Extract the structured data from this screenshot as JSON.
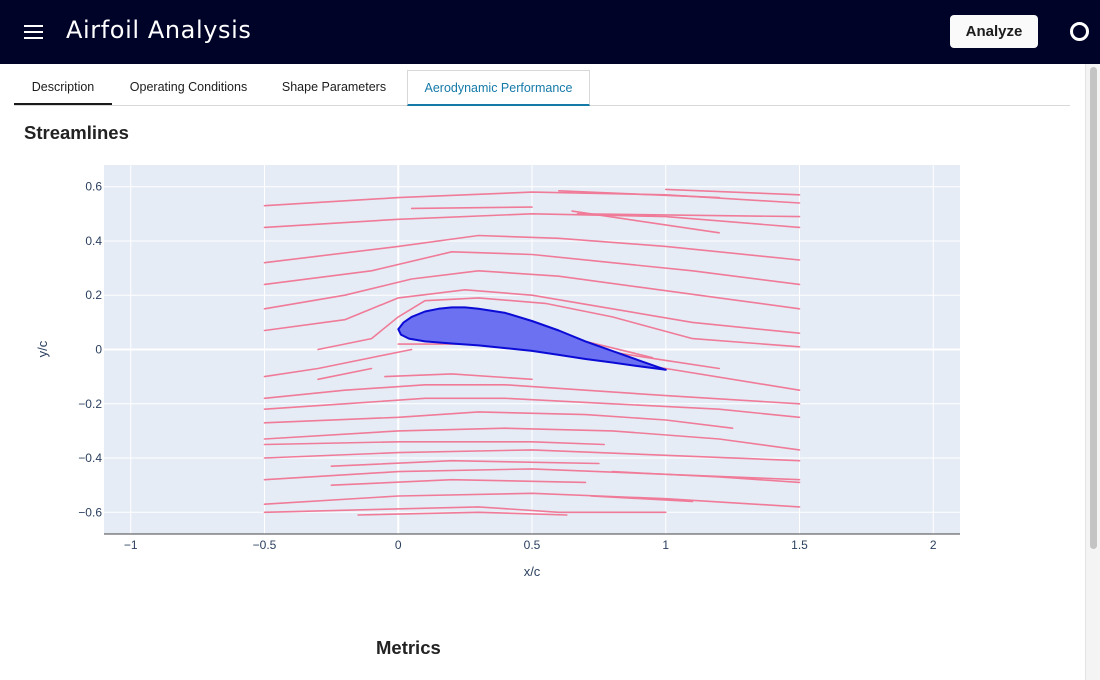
{
  "app": {
    "title": "Airfoil Analysis",
    "analyze_label": "Analyze"
  },
  "tabs": [
    {
      "label": "Description"
    },
    {
      "label": "Operating Conditions"
    },
    {
      "label": "Shape Parameters"
    },
    {
      "label": "Aerodynamic Performance"
    }
  ],
  "streamlines_section": {
    "title": "Streamlines"
  },
  "metrics_section": {
    "title": "Metrics"
  },
  "colors": {
    "appbar": "#000328",
    "active_tab": "#157aa8",
    "streamline": "#f07b98",
    "airfoil_fill": "#6b71f0",
    "airfoil_outline": "#0b0bd6",
    "plot_bg": "#e5ecf6"
  },
  "chart_data": {
    "type": "line",
    "title": "",
    "xlabel": "x/c",
    "ylabel": "y/c",
    "xlim": [
      -1.1,
      2.1
    ],
    "ylim": [
      -0.68,
      0.68
    ],
    "x_ticks": [
      -1,
      -0.5,
      0,
      0.5,
      1,
      1.5,
      2
    ],
    "x_tick_labels": [
      "−1",
      "−0.5",
      "0",
      "0.5",
      "1",
      "1.5",
      "2"
    ],
    "y_ticks": [
      -0.6,
      -0.4,
      -0.2,
      0,
      0.2,
      0.4,
      0.6
    ],
    "y_tick_labels": [
      "−0.6",
      "−0.4",
      "−0.2",
      "0",
      "0.2",
      "0.4",
      "0.6"
    ],
    "grid": true,
    "airfoil": {
      "x": [
        1.0,
        0.9,
        0.8,
        0.7,
        0.6,
        0.5,
        0.4,
        0.3,
        0.25,
        0.2,
        0.15,
        0.1,
        0.05,
        0.02,
        0.0,
        0.01,
        0.04,
        0.1,
        0.2,
        0.3,
        0.4,
        0.5,
        0.6,
        0.7,
        0.8,
        0.9,
        1.0
      ],
      "y": [
        -0.075,
        -0.04,
        -0.005,
        0.03,
        0.07,
        0.105,
        0.135,
        0.15,
        0.155,
        0.155,
        0.15,
        0.14,
        0.12,
        0.1,
        0.075,
        0.055,
        0.04,
        0.03,
        0.022,
        0.015,
        0.005,
        -0.005,
        -0.02,
        -0.035,
        -0.048,
        -0.062,
        -0.075
      ]
    },
    "streamlines": [
      {
        "x": [
          -0.5,
          0.0,
          0.5,
          1.0,
          1.5
        ],
        "y": [
          0.53,
          0.56,
          0.58,
          0.57,
          0.54
        ]
      },
      {
        "x": [
          0.05,
          0.5
        ],
        "y": [
          0.52,
          0.525
        ]
      },
      {
        "x": [
          0.6,
          1.2
        ],
        "y": [
          0.585,
          0.56
        ]
      },
      {
        "x": [
          1.0,
          1.5
        ],
        "y": [
          0.59,
          0.57
        ]
      },
      {
        "x": [
          0.67,
          1.5
        ],
        "y": [
          0.5,
          0.49
        ]
      },
      {
        "x": [
          0.65,
          1.2
        ],
        "y": [
          0.51,
          0.43
        ]
      },
      {
        "x": [
          -0.5,
          0.0,
          0.5,
          1.0,
          1.5
        ],
        "y": [
          0.45,
          0.48,
          0.5,
          0.49,
          0.45
        ]
      },
      {
        "x": [
          -0.5,
          0.0,
          0.3,
          0.6,
          1.0,
          1.5
        ],
        "y": [
          0.32,
          0.38,
          0.42,
          0.41,
          0.38,
          0.33
        ]
      },
      {
        "x": [
          -0.5,
          -0.1,
          0.2,
          0.5,
          0.8,
          1.1,
          1.5
        ],
        "y": [
          0.24,
          0.29,
          0.36,
          0.35,
          0.32,
          0.29,
          0.24
        ]
      },
      {
        "x": [
          -0.5,
          -0.2,
          0.05,
          0.3,
          0.6,
          0.9,
          1.2,
          1.5
        ],
        "y": [
          0.15,
          0.2,
          0.26,
          0.29,
          0.27,
          0.23,
          0.19,
          0.15
        ]
      },
      {
        "x": [
          -0.5,
          -0.2,
          0.0,
          0.25,
          0.5,
          0.8,
          1.1,
          1.5
        ],
        "y": [
          0.07,
          0.11,
          0.19,
          0.22,
          0.2,
          0.15,
          0.1,
          0.06
        ]
      },
      {
        "x": [
          -0.3,
          -0.1,
          0.0,
          0.1,
          0.3,
          0.55,
          0.8,
          1.1,
          1.5
        ],
        "y": [
          0.0,
          0.04,
          0.12,
          0.18,
          0.19,
          0.17,
          0.12,
          0.04,
          0.01
        ]
      },
      {
        "x": [
          -0.5,
          -0.3,
          -0.1,
          0.05
        ],
        "y": [
          -0.1,
          -0.07,
          -0.03,
          0.0
        ]
      },
      {
        "x": [
          0.05,
          0.1
        ],
        "y": [
          0.1,
          0.06
        ]
      },
      {
        "x": [
          0.8,
          1.0,
          1.2
        ],
        "y": [
          -0.01,
          -0.04,
          -0.07
        ]
      },
      {
        "x": [
          0.1,
          0.4,
          0.7,
          0.95
        ],
        "y": [
          0.13,
          0.07,
          0.03,
          -0.03
        ]
      },
      {
        "x": [
          0.0,
          0.3,
          0.6,
          1.0,
          1.5
        ],
        "y": [
          0.02,
          0.02,
          -0.01,
          -0.07,
          -0.15
        ]
      },
      {
        "x": [
          -0.3,
          -0.1
        ],
        "y": [
          -0.11,
          -0.07
        ]
      },
      {
        "x": [
          -0.05,
          0.2,
          0.5
        ],
        "y": [
          -0.1,
          -0.09,
          -0.11
        ]
      },
      {
        "x": [
          -0.5,
          -0.2,
          0.1,
          0.4,
          0.7,
          1.0,
          1.5
        ],
        "y": [
          -0.18,
          -0.15,
          -0.13,
          -0.13,
          -0.15,
          -0.17,
          -0.2
        ]
      },
      {
        "x": [
          -0.5,
          -0.2,
          0.1,
          0.4,
          0.8,
          1.2,
          1.5
        ],
        "y": [
          -0.22,
          -0.2,
          -0.18,
          -0.18,
          -0.2,
          -0.22,
          -0.25
        ]
      },
      {
        "x": [
          -0.5,
          0.0,
          0.3,
          0.7,
          1.0,
          1.25
        ],
        "y": [
          -0.27,
          -0.25,
          -0.23,
          -0.24,
          -0.26,
          -0.29
        ]
      },
      {
        "x": [
          -0.5,
          0.0,
          0.4,
          0.8,
          1.2,
          1.5
        ],
        "y": [
          -0.33,
          -0.3,
          -0.29,
          -0.3,
          -0.33,
          -0.37
        ]
      },
      {
        "x": [
          -0.5,
          0.0,
          0.5,
          0.77
        ],
        "y": [
          -0.35,
          -0.34,
          -0.34,
          -0.35
        ]
      },
      {
        "x": [
          -0.5,
          0.0,
          0.5,
          1.0,
          1.5
        ],
        "y": [
          -0.4,
          -0.38,
          -0.37,
          -0.39,
          -0.41
        ]
      },
      {
        "x": [
          -0.25,
          0.2,
          0.75
        ],
        "y": [
          -0.43,
          -0.41,
          -0.42
        ]
      },
      {
        "x": [
          0.8,
          1.2,
          1.5
        ],
        "y": [
          -0.45,
          -0.47,
          -0.49
        ]
      },
      {
        "x": [
          -0.5,
          0.0,
          0.5,
          1.0,
          1.5
        ],
        "y": [
          -0.48,
          -0.45,
          -0.44,
          -0.46,
          -0.48
        ]
      },
      {
        "x": [
          -0.25,
          0.2,
          0.7
        ],
        "y": [
          -0.5,
          -0.48,
          -0.49
        ]
      },
      {
        "x": [
          -0.5,
          0.0,
          0.5,
          1.0,
          1.5
        ],
        "y": [
          -0.57,
          -0.54,
          -0.53,
          -0.55,
          -0.58
        ]
      },
      {
        "x": [
          0.72,
          1.1
        ],
        "y": [
          -0.54,
          -0.56
        ]
      },
      {
        "x": [
          -0.5,
          -0.1,
          0.3,
          0.6,
          1.0
        ],
        "y": [
          -0.6,
          -0.59,
          -0.58,
          -0.6,
          -0.6
        ]
      },
      {
        "x": [
          -0.15,
          0.3,
          0.63
        ],
        "y": [
          -0.61,
          -0.6,
          -0.61
        ]
      }
    ]
  }
}
